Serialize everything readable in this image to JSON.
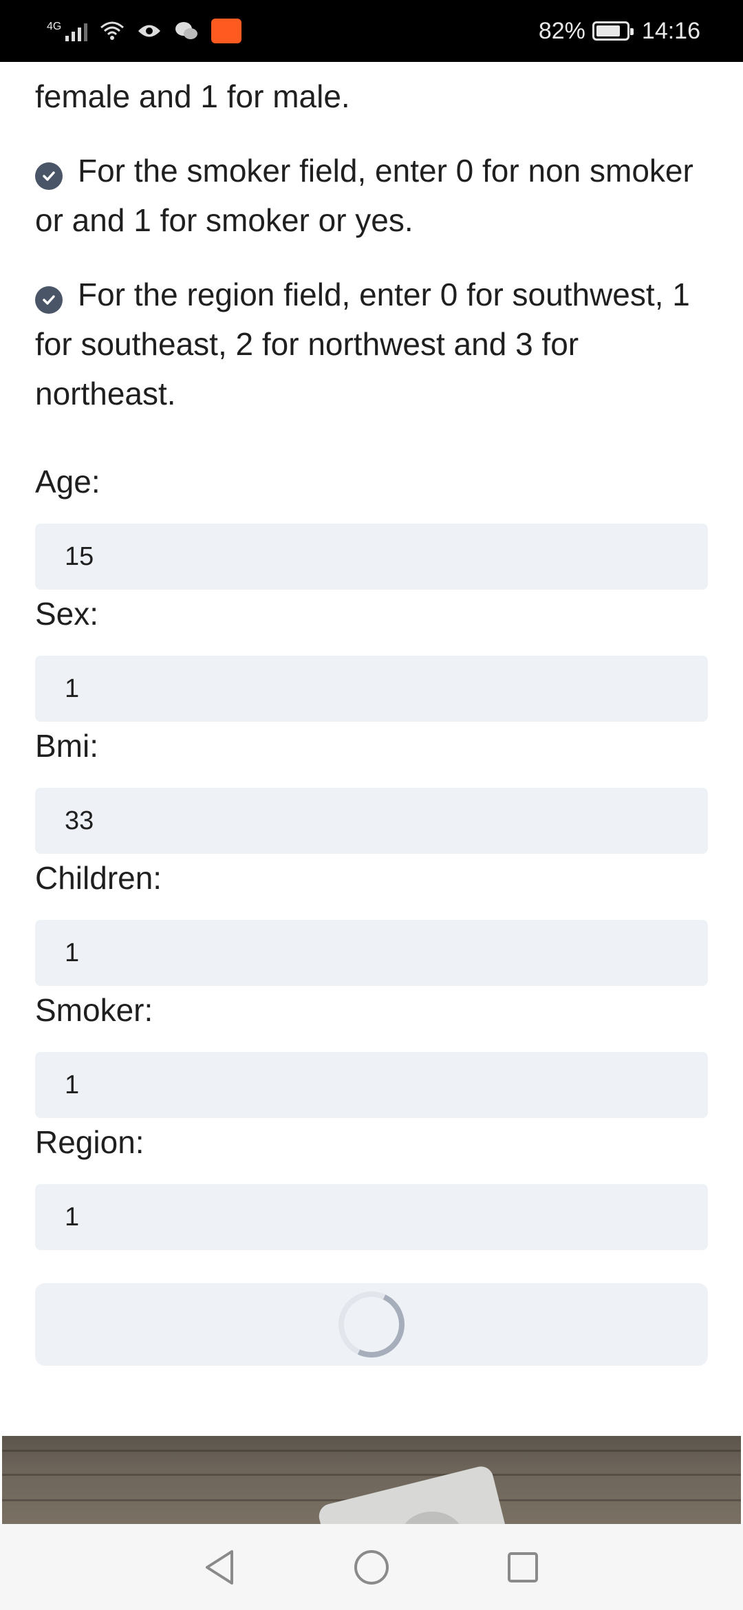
{
  "status_bar": {
    "network": "4G",
    "app_badge": "",
    "battery_percent": "82%",
    "battery_level": 0.82,
    "time": "14:16"
  },
  "instructions": {
    "partial_line": "female and 1 for male.",
    "smoker_note": "For the smoker field, enter 0 for non smoker or and 1 for smoker or yes.",
    "region_note": "For the region field, enter 0 for southwest, 1 for southeast, 2 for northwest and 3 for northeast."
  },
  "form": {
    "age_label": "Age:",
    "age_value": "15",
    "sex_label": "Sex:",
    "sex_value": "1",
    "bmi_label": "Bmi:",
    "bmi_value": "33",
    "children_label": "Children:",
    "children_value": "1",
    "smoker_label": "Smoker:",
    "smoker_value": "1",
    "region_label": "Region:",
    "region_value": "1"
  },
  "icons": {
    "check": "check-circle-icon",
    "spinner": "loading-spinner-icon",
    "back": "back-triangle-icon",
    "home": "home-circle-icon",
    "recents": "recents-square-icon"
  },
  "colors": {
    "input_bg": "#eef1f5",
    "check_icon": "#4a5568",
    "status_bar_bg": "#000000",
    "app_tile": "#ff5a1f"
  }
}
